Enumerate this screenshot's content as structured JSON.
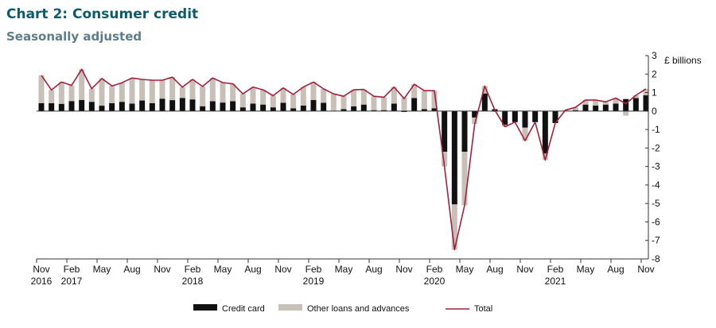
{
  "header": {
    "title": "Chart 2: Consumer credit",
    "subtitle": "Seasonally adjusted"
  },
  "chart_data": {
    "type": "bar",
    "stacked": true,
    "ylabel": "£ billions",
    "ylim": [
      -8,
      3
    ],
    "yticks": [
      3,
      2,
      1,
      0,
      -1,
      -2,
      -3,
      -4,
      -5,
      -6,
      -7,
      -8
    ],
    "y_axis_side": "right",
    "legend_position": "bottom",
    "x_start": "Nov 2016",
    "x_end": "Nov 2021",
    "xtick_labels": [
      {
        "month": "Nov",
        "year": "2016"
      },
      {
        "month": "Feb",
        "year": "2017"
      },
      {
        "month": "May",
        "year": ""
      },
      {
        "month": "Aug",
        "year": ""
      },
      {
        "month": "Nov",
        "year": ""
      },
      {
        "month": "Feb",
        "year": "2018"
      },
      {
        "month": "May",
        "year": ""
      },
      {
        "month": "Aug",
        "year": ""
      },
      {
        "month": "Nov",
        "year": ""
      },
      {
        "month": "Feb",
        "year": "2019"
      },
      {
        "month": "May",
        "year": ""
      },
      {
        "month": "Aug",
        "year": ""
      },
      {
        "month": "Nov",
        "year": ""
      },
      {
        "month": "Feb",
        "year": "2020"
      },
      {
        "month": "May",
        "year": ""
      },
      {
        "month": "Aug",
        "year": ""
      },
      {
        "month": "Nov",
        "year": ""
      },
      {
        "month": "Feb",
        "year": "2021"
      },
      {
        "month": "May",
        "year": ""
      },
      {
        "month": "Aug",
        "year": ""
      },
      {
        "month": "Nov",
        "year": ""
      }
    ],
    "series": [
      {
        "name": "Credit card",
        "kind": "bar",
        "color": "#111111",
        "values": [
          0.43,
          0.43,
          0.39,
          0.54,
          0.6,
          0.5,
          0.29,
          0.43,
          0.5,
          0.4,
          0.57,
          0.43,
          0.67,
          0.59,
          0.71,
          0.63,
          0.26,
          0.53,
          0.46,
          0.53,
          0.2,
          0.4,
          0.35,
          0.2,
          0.45,
          0.15,
          0.3,
          0.6,
          0.45,
          0.0,
          0.1,
          0.25,
          0.35,
          0.05,
          0.05,
          0.4,
          -0.05,
          0.7,
          0.1,
          0.15,
          -2.2,
          -5.05,
          -2.2,
          -0.35,
          0.95,
          0.1,
          -0.75,
          -0.6,
          -0.9,
          -0.6,
          -2.3,
          -0.65,
          0.0,
          0.05,
          0.35,
          0.3,
          0.35,
          0.4,
          0.65,
          0.7,
          0.85
        ]
      },
      {
        "name": "Other loans and advances",
        "kind": "bar",
        "color": "#c8bfb6",
        "values": [
          1.5,
          0.71,
          1.18,
          0.85,
          1.66,
          0.71,
          1.47,
          0.93,
          1.03,
          1.39,
          1.14,
          1.24,
          1.0,
          1.24,
          0.58,
          1.08,
          1.07,
          1.26,
          1.08,
          0.94,
          0.73,
          0.9,
          0.8,
          0.63,
          0.8,
          0.75,
          1.0,
          0.97,
          0.75,
          0.93,
          0.7,
          0.9,
          0.82,
          0.75,
          0.7,
          0.9,
          0.72,
          0.75,
          1.0,
          0.95,
          -0.8,
          -2.45,
          -2.9,
          -0.35,
          0.4,
          -0.05,
          -0.1,
          0.0,
          -0.7,
          0.0,
          -0.35,
          0.0,
          0.05,
          0.15,
          0.25,
          0.3,
          0.15,
          0.3,
          -0.25,
          0.15,
          0.35
        ]
      },
      {
        "name": "Total",
        "kind": "line",
        "color": "#a3203a",
        "values": [
          1.93,
          1.14,
          1.57,
          1.39,
          2.26,
          1.21,
          1.76,
          1.36,
          1.53,
          1.79,
          1.71,
          1.67,
          1.67,
          1.83,
          1.29,
          1.71,
          1.33,
          1.79,
          1.54,
          1.47,
          0.93,
          1.3,
          1.15,
          0.83,
          1.25,
          0.9,
          1.3,
          1.57,
          1.2,
          0.93,
          0.8,
          1.15,
          1.17,
          0.8,
          0.75,
          1.3,
          0.67,
          1.45,
          1.1,
          1.1,
          -3.0,
          -7.5,
          -5.1,
          -0.7,
          1.35,
          0.05,
          -0.85,
          -0.6,
          -1.6,
          -0.6,
          -2.65,
          -0.65,
          0.05,
          0.2,
          0.6,
          0.6,
          0.5,
          0.7,
          0.4,
          0.85,
          1.2
        ]
      }
    ],
    "grid": false
  }
}
